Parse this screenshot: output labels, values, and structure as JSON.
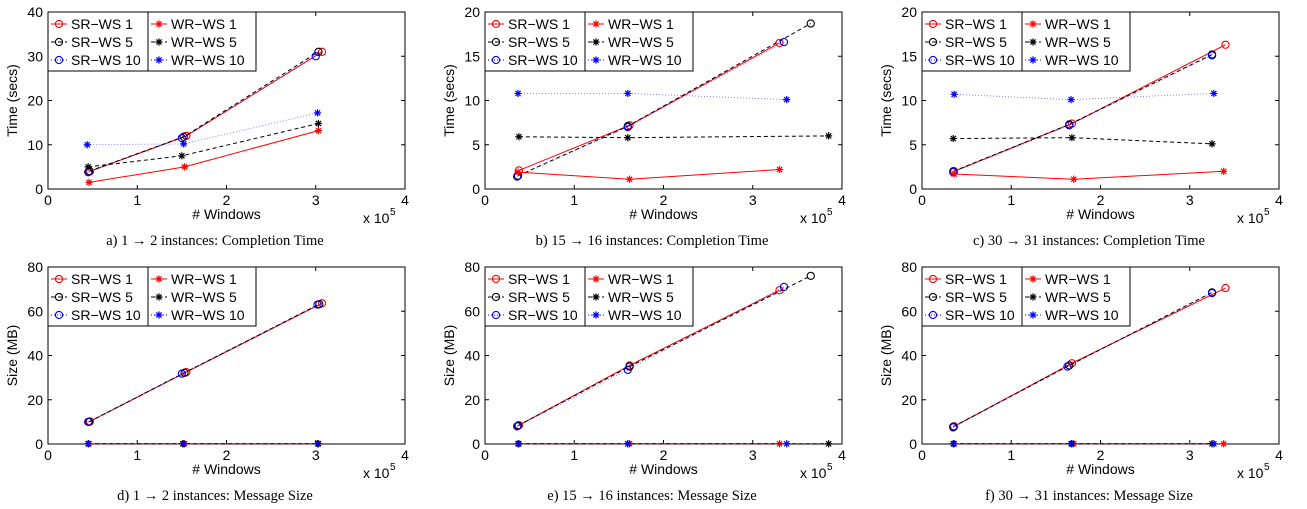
{
  "chart_data": [
    {
      "type": "line",
      "caption": "a) 1 → 2 instances: Completion Time",
      "xlabel": "# Windows",
      "ylabel": "Time (secs)",
      "x_multiplier_label": "x 10",
      "x_multiplier_exponent": "5",
      "xlim": [
        0,
        4
      ],
      "ylim": [
        0,
        40
      ],
      "xticks": [
        "0",
        "1",
        "2",
        "3",
        "4"
      ],
      "yticks": [
        "0",
        "10",
        "20",
        "30",
        "40"
      ],
      "grid": false,
      "legend": "top-left",
      "series": [
        {
          "name": "SR−WS 1",
          "color": "#ff0000",
          "marker": "circle",
          "style": "solid",
          "x": [
            0.47,
            1.55,
            3.07
          ],
          "y": [
            4.0,
            12.0,
            31.0
          ]
        },
        {
          "name": "SR−WS 5",
          "color": "#000000",
          "marker": "circle",
          "style": "dashed",
          "x": [
            0.46,
            1.52,
            3.03
          ],
          "y": [
            4.0,
            11.8,
            31.0
          ]
        },
        {
          "name": "SR−WS 10",
          "color": "#0000ff",
          "marker": "circle",
          "style": "dotted",
          "x": [
            0.45,
            1.5,
            3.0
          ],
          "y": [
            3.8,
            11.5,
            30.0
          ]
        },
        {
          "name": "WR−WS 1",
          "color": "#ff0000",
          "marker": "star",
          "style": "solid",
          "x": [
            0.46,
            1.53,
            3.03
          ],
          "y": [
            1.5,
            5.0,
            13.2
          ]
        },
        {
          "name": "WR−WS 5",
          "color": "#000000",
          "marker": "star",
          "style": "dashed",
          "x": [
            0.45,
            1.5,
            3.03
          ],
          "y": [
            5.0,
            7.5,
            14.8
          ]
        },
        {
          "name": "WR−WS 10",
          "color": "#0000ff",
          "marker": "star",
          "style": "dotted",
          "x": [
            0.44,
            1.52,
            3.02
          ],
          "y": [
            10.0,
            10.2,
            17.2
          ]
        }
      ]
    },
    {
      "type": "line",
      "caption": "b) 15 → 16 instances: Completion Time",
      "xlabel": "# Windows",
      "ylabel": "Time (secs)",
      "x_multiplier_label": "x 10",
      "x_multiplier_exponent": "5",
      "xlim": [
        0,
        4
      ],
      "ylim": [
        0,
        20
      ],
      "xticks": [
        "0",
        "1",
        "2",
        "3",
        "4"
      ],
      "yticks": [
        "0",
        "5",
        "10",
        "15",
        "20"
      ],
      "grid": false,
      "legend": "top-left",
      "series": [
        {
          "name": "SR−WS 1",
          "color": "#ff0000",
          "marker": "circle",
          "style": "solid",
          "x": [
            0.38,
            1.62,
            3.3
          ],
          "y": [
            2.1,
            7.2,
            16.5
          ]
        },
        {
          "name": "SR−WS 5",
          "color": "#000000",
          "marker": "circle",
          "style": "dashed",
          "x": [
            0.37,
            1.6,
            3.65
          ],
          "y": [
            1.5,
            7.1,
            18.7
          ]
        },
        {
          "name": "SR−WS 10",
          "color": "#0000ff",
          "marker": "circle",
          "style": "dotted",
          "x": [
            0.36,
            1.6,
            3.35
          ],
          "y": [
            1.4,
            7.0,
            16.6
          ]
        },
        {
          "name": "WR−WS 1",
          "color": "#ff0000",
          "marker": "star",
          "style": "solid",
          "x": [
            0.37,
            1.62,
            3.3
          ],
          "y": [
            1.9,
            1.1,
            2.2
          ]
        },
        {
          "name": "WR−WS 5",
          "color": "#000000",
          "marker": "star",
          "style": "dashed",
          "x": [
            0.38,
            1.6,
            3.85
          ],
          "y": [
            5.9,
            5.8,
            6.0
          ]
        },
        {
          "name": "WR−WS 10",
          "color": "#0000ff",
          "marker": "star",
          "style": "dotted",
          "x": [
            0.37,
            1.6,
            3.38
          ],
          "y": [
            10.8,
            10.8,
            10.1
          ]
        }
      ]
    },
    {
      "type": "line",
      "caption": "c) 30 → 31 instances: Completion Time",
      "xlabel": "# Windows",
      "ylabel": "Time (secs)",
      "x_multiplier_label": "x 10",
      "x_multiplier_exponent": "5",
      "xlim": [
        0,
        4
      ],
      "ylim": [
        0,
        20
      ],
      "xticks": [
        "0",
        "1",
        "2",
        "3",
        "4"
      ],
      "yticks": [
        "0",
        "5",
        "10",
        "15",
        "20"
      ],
      "grid": false,
      "legend": "top-left",
      "series": [
        {
          "name": "SR−WS 1",
          "color": "#ff0000",
          "marker": "circle",
          "style": "solid",
          "x": [
            0.36,
            1.68,
            3.4
          ],
          "y": [
            2.0,
            7.4,
            16.3
          ]
        },
        {
          "name": "SR−WS 5",
          "color": "#000000",
          "marker": "circle",
          "style": "dashed",
          "x": [
            0.35,
            1.65,
            3.25
          ],
          "y": [
            2.0,
            7.3,
            15.2
          ]
        },
        {
          "name": "SR−WS 10",
          "color": "#0000ff",
          "marker": "circle",
          "style": "dotted",
          "x": [
            0.35,
            1.65,
            3.25
          ],
          "y": [
            1.9,
            7.2,
            15.1
          ]
        },
        {
          "name": "WR−WS 1",
          "color": "#ff0000",
          "marker": "star",
          "style": "solid",
          "x": [
            0.36,
            1.7,
            3.38
          ],
          "y": [
            1.7,
            1.1,
            2.0
          ]
        },
        {
          "name": "WR−WS 5",
          "color": "#000000",
          "marker": "star",
          "style": "dashed",
          "x": [
            0.35,
            1.68,
            3.25
          ],
          "y": [
            5.7,
            5.8,
            5.1
          ]
        },
        {
          "name": "WR−WS 10",
          "color": "#0000ff",
          "marker": "star",
          "style": "dotted",
          "x": [
            0.36,
            1.67,
            3.27
          ],
          "y": [
            10.7,
            10.1,
            10.8
          ]
        }
      ]
    },
    {
      "type": "line",
      "caption": "d) 1 → 2 instances: Message Size",
      "xlabel": "# Windows",
      "ylabel": "Size (MB)",
      "x_multiplier_label": "x 10",
      "x_multiplier_exponent": "5",
      "xlim": [
        0,
        4
      ],
      "ylim": [
        0,
        80
      ],
      "xticks": [
        "0",
        "1",
        "2",
        "3",
        "4"
      ],
      "yticks": [
        "0",
        "20",
        "40",
        "60",
        "80"
      ],
      "grid": false,
      "legend": "top-left",
      "series": [
        {
          "name": "SR−WS 1",
          "color": "#ff0000",
          "marker": "circle",
          "style": "solid",
          "x": [
            0.47,
            1.55,
            3.07
          ],
          "y": [
            10.2,
            32.5,
            63.6
          ]
        },
        {
          "name": "SR−WS 5",
          "color": "#000000",
          "marker": "circle",
          "style": "dashed",
          "x": [
            0.46,
            1.53,
            3.04
          ],
          "y": [
            10.0,
            32.2,
            63.2
          ]
        },
        {
          "name": "SR−WS 10",
          "color": "#0000ff",
          "marker": "circle",
          "style": "dotted",
          "x": [
            0.45,
            1.5,
            3.02
          ],
          "y": [
            10.0,
            31.8,
            63.0
          ]
        },
        {
          "name": "WR−WS 1",
          "color": "#ff0000",
          "marker": "star",
          "style": "solid",
          "x": [
            0.46,
            1.53,
            3.03
          ],
          "y": [
            0.1,
            0.1,
            0.1
          ]
        },
        {
          "name": "WR−WS 5",
          "color": "#000000",
          "marker": "star",
          "style": "dashed",
          "x": [
            0.45,
            1.51,
            3.03
          ],
          "y": [
            0.1,
            0.1,
            0.1
          ]
        },
        {
          "name": "WR−WS 10",
          "color": "#0000ff",
          "marker": "star",
          "style": "dotted",
          "x": [
            0.45,
            1.52,
            3.02
          ],
          "y": [
            0.1,
            0.1,
            0.1
          ]
        }
      ]
    },
    {
      "type": "line",
      "caption": "e) 15 → 16 instances: Message Size",
      "xlabel": "# Windows",
      "ylabel": "Size (MB)",
      "x_multiplier_label": "x 10",
      "x_multiplier_exponent": "5",
      "xlim": [
        0,
        4
      ],
      "ylim": [
        0,
        80
      ],
      "xticks": [
        "0",
        "1",
        "2",
        "3",
        "4"
      ],
      "yticks": [
        "0",
        "20",
        "40",
        "60",
        "80"
      ],
      "grid": false,
      "legend": "top-left",
      "series": [
        {
          "name": "SR−WS 1",
          "color": "#ff0000",
          "marker": "circle",
          "style": "solid",
          "x": [
            0.38,
            1.62,
            3.3
          ],
          "y": [
            8.5,
            35.5,
            69.5
          ]
        },
        {
          "name": "SR−WS 5",
          "color": "#000000",
          "marker": "circle",
          "style": "dashed",
          "x": [
            0.37,
            1.62,
            3.65
          ],
          "y": [
            8.3,
            35.0,
            76.0
          ]
        },
        {
          "name": "SR−WS 10",
          "color": "#0000ff",
          "marker": "circle",
          "style": "dotted",
          "x": [
            0.36,
            1.6,
            3.35
          ],
          "y": [
            8.0,
            33.5,
            71.0
          ]
        },
        {
          "name": "WR−WS 1",
          "color": "#ff0000",
          "marker": "star",
          "style": "solid",
          "x": [
            0.37,
            1.62,
            3.3
          ],
          "y": [
            0.1,
            0.1,
            0.1
          ]
        },
        {
          "name": "WR−WS 5",
          "color": "#000000",
          "marker": "star",
          "style": "dashed",
          "x": [
            0.38,
            1.6,
            3.85
          ],
          "y": [
            0.1,
            0.1,
            0.1
          ]
        },
        {
          "name": "WR−WS 10",
          "color": "#0000ff",
          "marker": "star",
          "style": "dotted",
          "x": [
            0.37,
            1.6,
            3.38
          ],
          "y": [
            0.1,
            0.1,
            0.1
          ]
        }
      ]
    },
    {
      "type": "line",
      "caption": "f) 30 → 31 instances: Message Size",
      "xlabel": "# Windows",
      "ylabel": "Size (MB)",
      "x_multiplier_label": "x 10",
      "x_multiplier_exponent": "5",
      "xlim": [
        0,
        4
      ],
      "ylim": [
        0,
        80
      ],
      "xticks": [
        "0",
        "1",
        "2",
        "3",
        "4"
      ],
      "yticks": [
        "0",
        "20",
        "40",
        "60",
        "80"
      ],
      "grid": false,
      "legend": "top-left",
      "series": [
        {
          "name": "SR−WS 1",
          "color": "#ff0000",
          "marker": "circle",
          "style": "solid",
          "x": [
            0.36,
            1.68,
            3.4
          ],
          "y": [
            8.0,
            36.5,
            70.5
          ]
        },
        {
          "name": "SR−WS 5",
          "color": "#000000",
          "marker": "circle",
          "style": "dashed",
          "x": [
            0.35,
            1.65,
            3.25
          ],
          "y": [
            7.8,
            35.5,
            68.5
          ]
        },
        {
          "name": "SR−WS 10",
          "color": "#0000ff",
          "marker": "circle",
          "style": "dotted",
          "x": [
            0.35,
            1.63,
            3.25
          ],
          "y": [
            7.5,
            35.0,
            68.2
          ]
        },
        {
          "name": "WR−WS 1",
          "color": "#ff0000",
          "marker": "star",
          "style": "solid",
          "x": [
            0.36,
            1.7,
            3.38
          ],
          "y": [
            0.1,
            0.1,
            0.1
          ]
        },
        {
          "name": "WR−WS 5",
          "color": "#000000",
          "marker": "star",
          "style": "dashed",
          "x": [
            0.35,
            1.68,
            3.25
          ],
          "y": [
            0.1,
            0.1,
            0.1
          ]
        },
        {
          "name": "WR−WS 10",
          "color": "#0000ff",
          "marker": "star",
          "style": "dotted",
          "x": [
            0.36,
            1.67,
            3.27
          ],
          "y": [
            0.1,
            0.1,
            0.1
          ]
        }
      ]
    }
  ]
}
